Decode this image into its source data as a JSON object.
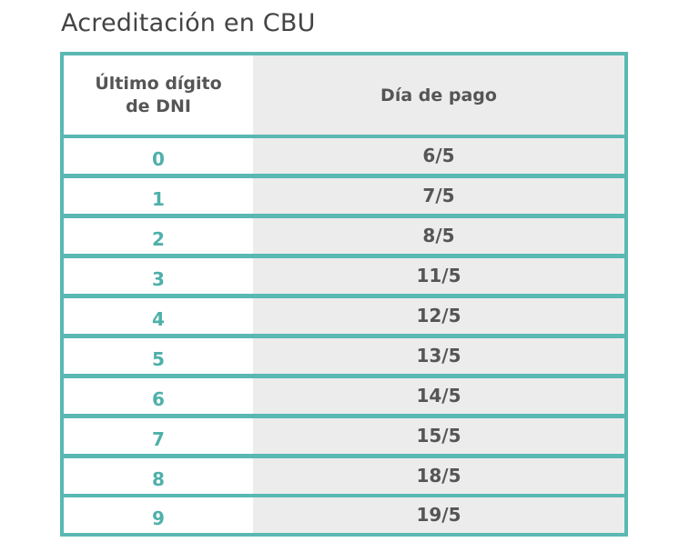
{
  "page": {
    "title": "Acreditación en CBU"
  },
  "table": {
    "header": {
      "col1_line1": "Último dígito",
      "col1_line2": "de DNI",
      "col2": "Día de pago"
    },
    "rows": [
      {
        "digit": "0",
        "date": "6/5"
      },
      {
        "digit": "1",
        "date": "7/5"
      },
      {
        "digit": "2",
        "date": "8/5"
      },
      {
        "digit": "3",
        "date": "11/5"
      },
      {
        "digit": "4",
        "date": "12/5"
      },
      {
        "digit": "5",
        "date": "13/5"
      },
      {
        "digit": "6",
        "date": "14/5"
      },
      {
        "digit": "7",
        "date": "15/5"
      },
      {
        "digit": "8",
        "date": "18/5"
      },
      {
        "digit": "9",
        "date": "19/5"
      }
    ]
  },
  "colors": {
    "border": "#5ab8b3",
    "digit_text": "#4fb0aa",
    "date_text": "#555555",
    "right_column_bg": "#ececec",
    "title_text": "#444444"
  }
}
